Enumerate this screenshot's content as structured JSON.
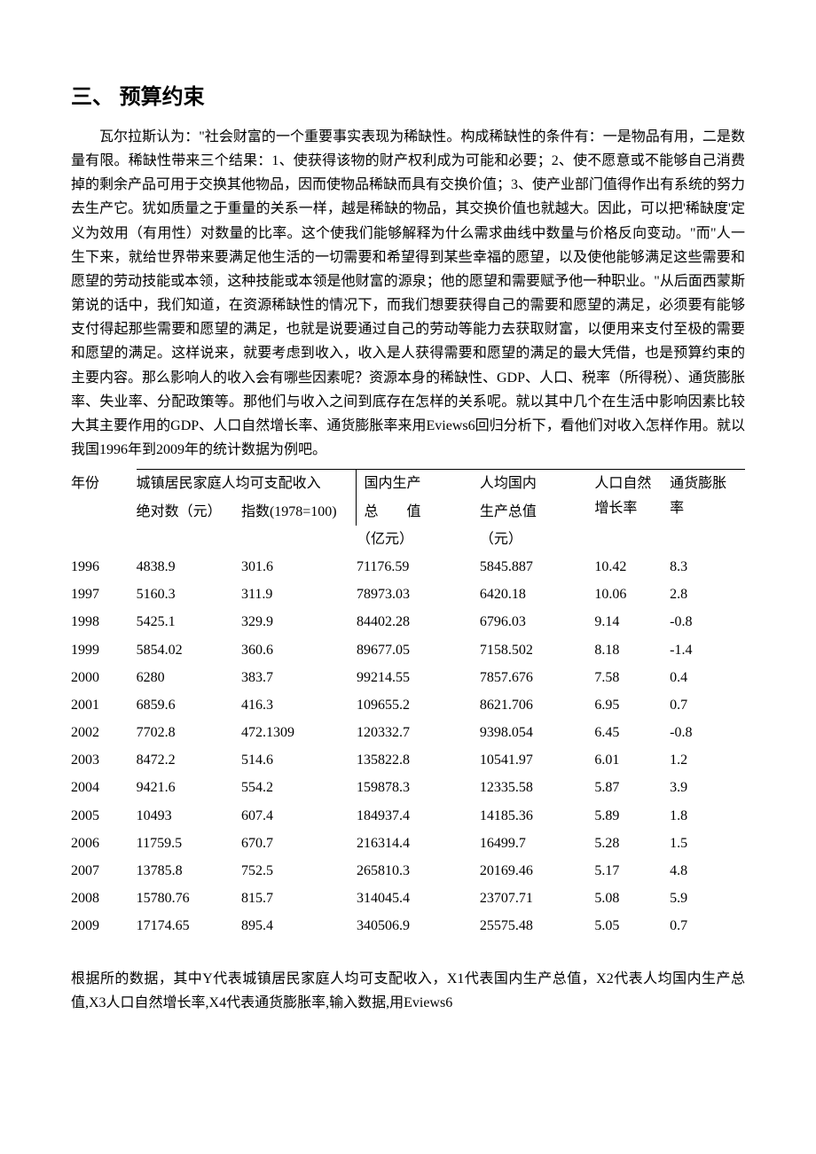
{
  "section": {
    "heading": "三、 预算约束",
    "paragraph": "瓦尔拉斯认为：\"社会财富的一个重要事实表现为稀缺性。构成稀缺性的条件有：一是物品有用，二是数量有限。稀缺性带来三个结果：1、使获得该物的财产权利成为可能和必要；2、使不愿意或不能够自己消费掉的剩余产品可用于交换其他物品，因而使物品稀缺而具有交换价值；3、使产业部门值得作出有系统的努力去生产它。犹如质量之于重量的关系一样，越是稀缺的物品，其交换价值也就越大。因此，可以把'稀缺度'定义为效用（有用性）对数量的比率。这个使我们能够解释为什么需求曲线中数量与价格反向变动。\"而\"人一生下来，就给世界带来要满足他生活的一切需要和希望得到某些幸福的愿望，以及使他能够满足这些需要和愿望的劳动技能或本领，这种技能或本领是他财富的源泉；他的愿望和需要赋予他一种职业。\"从后面西蒙斯第说的话中，我们知道，在资源稀缺性的情况下，而我们想要获得自己的需要和愿望的满足，必须要有能够支付得起那些需要和愿望的满足，也就是说要通过自己的劳动等能力去获取财富，以便用来支付至极的需要和愿望的满足。这样说来，就要考虑到收入，收入是人获得需要和愿望的满足的最大凭借，也是预算约束的主要内容。那么影响人的收入会有哪些因素呢？资源本身的稀缺性、GDP、人口、税率（所得税）、通货膨胀率、失业率、分配政策等。那他们与收入之间到底存在怎样的关系呢。就以其中几个在生活中影响因素比较大其主要作用的GDP、人口自然增长率、通货膨胀率来用Eviews6回归分析下，看他们对收入怎样作用。就以我国1996年到2009年的统计数据为例吧。"
  },
  "table": {
    "header": {
      "year": "年份",
      "disposable": "城镇居民家庭人均可支配收入",
      "abs": "绝对数（元）",
      "idx": "指数(1978=100)",
      "gdp_top": "国内生产",
      "gdp_mid": "总　　值",
      "gdp_unit": "（亿元）",
      "pgdp_top": "人均国内",
      "pgdp_mid": "生产总值",
      "pgdp_unit": "（元）",
      "ngr": "人口自然增长率",
      "inf": "通货膨胀率"
    },
    "rows": [
      {
        "year": "1996",
        "abs": "4838.9",
        "idx": "301.6",
        "gdp": "71176.59",
        "pgdp": "5845.887",
        "ngr": "10.42",
        "inf": "8.3"
      },
      {
        "year": "1997",
        "abs": "5160.3",
        "idx": "311.9",
        "gdp": "78973.03",
        "pgdp": "6420.18",
        "ngr": "10.06",
        "inf": "2.8"
      },
      {
        "year": "1998",
        "abs": "5425.1",
        "idx": "329.9",
        "gdp": "84402.28",
        "pgdp": "6796.03",
        "ngr": "9.14",
        "inf": "-0.8"
      },
      {
        "year": "1999",
        "abs": "5854.02",
        "idx": "360.6",
        "gdp": "89677.05",
        "pgdp": "7158.502",
        "ngr": "8.18",
        "inf": "-1.4"
      },
      {
        "year": "2000",
        "abs": "6280",
        "idx": "383.7",
        "gdp": "99214.55",
        "pgdp": "7857.676",
        "ngr": "7.58",
        "inf": "0.4"
      },
      {
        "year": "2001",
        "abs": "6859.6",
        "idx": "416.3",
        "gdp": "109655.2",
        "pgdp": "8621.706",
        "ngr": "6.95",
        "inf": "0.7"
      },
      {
        "year": "2002",
        "abs": "7702.8",
        "idx": "472.1309",
        "gdp": "120332.7",
        "pgdp": "9398.054",
        "ngr": "6.45",
        "inf": "-0.8"
      },
      {
        "year": "2003",
        "abs": "8472.2",
        "idx": "514.6",
        "gdp": "135822.8",
        "pgdp": "10541.97",
        "ngr": "6.01",
        "inf": "1.2"
      },
      {
        "year": "2004",
        "abs": "9421.6",
        "idx": "554.2",
        "gdp": "159878.3",
        "pgdp": "12335.58",
        "ngr": "5.87",
        "inf": "3.9"
      },
      {
        "year": "2005",
        "abs": "10493",
        "idx": "607.4",
        "gdp": "184937.4",
        "pgdp": "14185.36",
        "ngr": "5.89",
        "inf": "1.8"
      },
      {
        "year": "2006",
        "abs": "11759.5",
        "idx": "670.7",
        "gdp": "216314.4",
        "pgdp": "16499.7",
        "ngr": "5.28",
        "inf": "1.5"
      },
      {
        "year": "2007",
        "abs": "13785.8",
        "idx": "752.5",
        "gdp": "265810.3",
        "pgdp": "20169.46",
        "ngr": "5.17",
        "inf": "4.8"
      },
      {
        "year": "2008",
        "abs": "15780.76",
        "idx": "815.7",
        "gdp": "314045.4",
        "pgdp": "23707.71",
        "ngr": "5.08",
        "inf": "5.9"
      },
      {
        "year": "2009",
        "abs": "17174.65",
        "idx": "895.4",
        "gdp": "340506.9",
        "pgdp": "25575.48",
        "ngr": "5.05",
        "inf": "0.7"
      }
    ]
  },
  "footnote": "根据所的数据，其中Y代表城镇居民家庭人均可支配收入，X1代表国内生产总值，X2代表人均国内生产总值,X3人口自然增长率,X4代表通货膨胀率,输入数据,用Eviews6"
}
